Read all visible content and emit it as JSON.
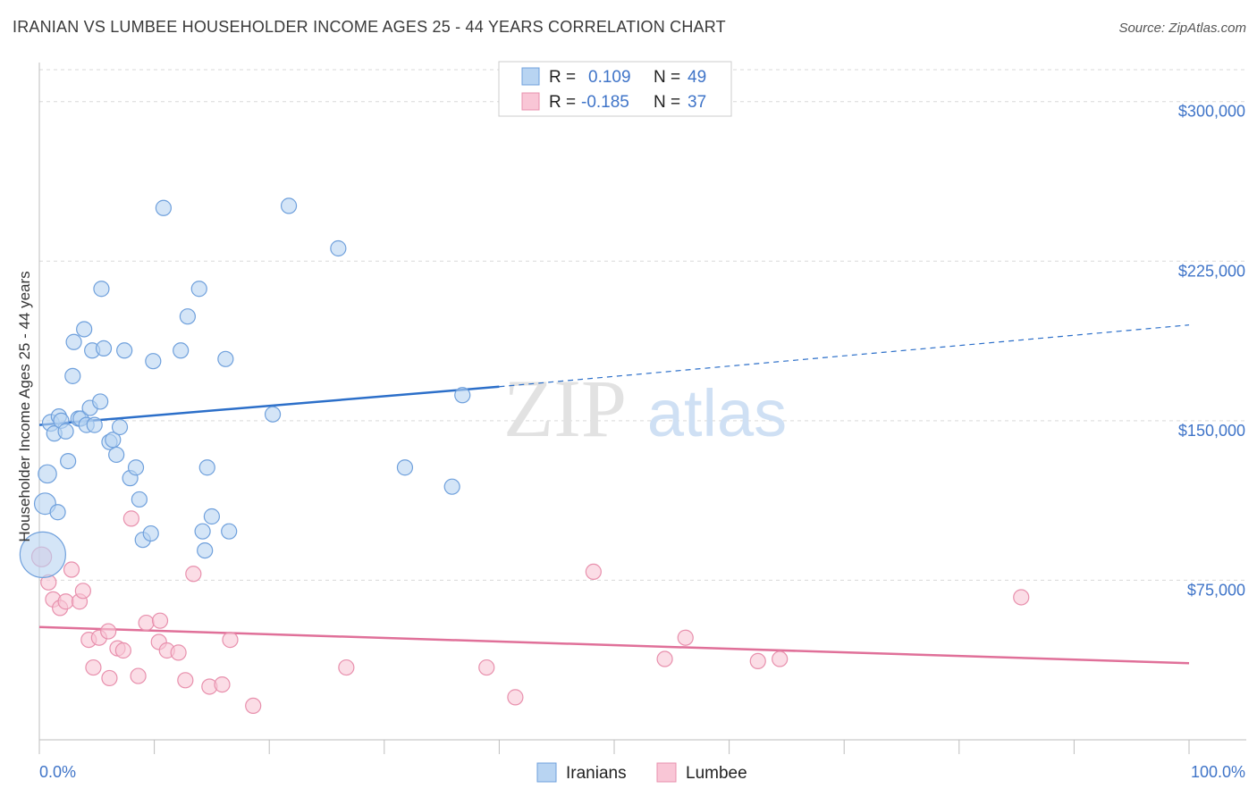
{
  "title": "IRANIAN VS LUMBEE HOUSEHOLDER INCOME AGES 25 - 44 YEARS CORRELATION CHART",
  "source": "Source: ZipAtlas.com",
  "watermark": {
    "zip": "ZIP",
    "atlas": "atlas"
  },
  "colors": {
    "iranians_fill": "#b8d4f2",
    "iranians_stroke": "#6fa0dc",
    "iranians_line": "#2c6fc9",
    "lumbee_fill": "#f9c6d6",
    "lumbee_stroke": "#e890ad",
    "lumbee_line": "#e07099",
    "grid": "#d9d9d9",
    "axis_text": "#3f74c8"
  },
  "legend": {
    "rows": [
      {
        "r_label": "R = ",
        "r_value": "0.109",
        "n_label": "N = ",
        "n_value": "49"
      },
      {
        "r_label": "R = ",
        "r_value": "-0.185",
        "n_label": "N = ",
        "n_value": "37"
      }
    ]
  },
  "chart_data": {
    "type": "scatter",
    "title": "IRANIAN VS LUMBEE HOUSEHOLDER INCOME AGES 25 - 44 YEARS CORRELATION CHART",
    "xlabel": "",
    "ylabel": "Householder Income Ages 25 - 44 years",
    "xlim": [
      0,
      100
    ],
    "ylim": [
      0,
      315000
    ],
    "x_tick_labels": [
      "0.0%",
      "100.0%"
    ],
    "y_ticks": [
      75000,
      150000,
      225000,
      300000
    ],
    "y_tick_labels": [
      "$75,000",
      "$150,000",
      "$225,000",
      "$300,000"
    ],
    "grid": true,
    "legend_placement": "top-center",
    "series": [
      {
        "name": "Iranians",
        "points": [
          [
            0.3,
            87000,
            3
          ],
          [
            0.5,
            111000,
            1.4
          ],
          [
            0.7,
            125000,
            1.2
          ],
          [
            1.0,
            149000,
            1.1
          ],
          [
            1.3,
            144000,
            1
          ],
          [
            1.6,
            107000,
            1
          ],
          [
            1.7,
            152000,
            1
          ],
          [
            1.9,
            150000,
            1
          ],
          [
            2.3,
            145000,
            1
          ],
          [
            2.5,
            131000,
            1
          ],
          [
            2.9,
            171000,
            1
          ],
          [
            3.0,
            187000,
            1
          ],
          [
            3.4,
            151000,
            1
          ],
          [
            3.6,
            151000,
            1
          ],
          [
            3.9,
            193000,
            1
          ],
          [
            4.1,
            148000,
            1
          ],
          [
            4.4,
            156000,
            1
          ],
          [
            4.6,
            183000,
            1
          ],
          [
            4.8,
            148000,
            1
          ],
          [
            5.3,
            159000,
            1
          ],
          [
            5.4,
            212000,
            1
          ],
          [
            5.6,
            184000,
            1
          ],
          [
            6.1,
            140000,
            1
          ],
          [
            6.4,
            141000,
            1
          ],
          [
            6.7,
            134000,
            1
          ],
          [
            7.0,
            147000,
            1
          ],
          [
            7.4,
            183000,
            1
          ],
          [
            7.9,
            123000,
            1
          ],
          [
            8.4,
            128000,
            1
          ],
          [
            8.7,
            113000,
            1
          ],
          [
            9.0,
            94000,
            1
          ],
          [
            9.7,
            97000,
            1
          ],
          [
            9.9,
            178000,
            1
          ],
          [
            10.8,
            250000,
            1
          ],
          [
            12.3,
            183000,
            1
          ],
          [
            12.9,
            199000,
            1
          ],
          [
            13.9,
            212000,
            1
          ],
          [
            14.2,
            98000,
            1
          ],
          [
            14.4,
            89000,
            1
          ],
          [
            14.6,
            128000,
            1
          ],
          [
            15.0,
            105000,
            1
          ],
          [
            16.2,
            179000,
            1
          ],
          [
            16.5,
            98000,
            1
          ],
          [
            20.3,
            153000,
            1
          ],
          [
            21.7,
            251000,
            1
          ],
          [
            26.0,
            231000,
            1
          ],
          [
            31.8,
            128000,
            1
          ],
          [
            35.9,
            119000,
            1
          ],
          [
            36.8,
            162000,
            1
          ]
        ],
        "trend": {
          "x0": 0,
          "y0": 148000,
          "x1": 40,
          "y1": 166000,
          "dashed_to_x": 100,
          "dashed_to_y": 195000
        }
      },
      {
        "name": "Lumbee",
        "points": [
          [
            0.2,
            86000,
            1.3
          ],
          [
            0.8,
            74000,
            1
          ],
          [
            1.2,
            66000,
            1
          ],
          [
            1.8,
            62000,
            1
          ],
          [
            2.3,
            65000,
            1
          ],
          [
            2.8,
            80000,
            1
          ],
          [
            3.5,
            65000,
            1
          ],
          [
            3.8,
            70000,
            1
          ],
          [
            4.3,
            47000,
            1
          ],
          [
            4.7,
            34000,
            1
          ],
          [
            5.2,
            48000,
            1
          ],
          [
            6.0,
            51000,
            1
          ],
          [
            6.1,
            29000,
            1
          ],
          [
            6.8,
            43000,
            1
          ],
          [
            7.3,
            42000,
            1
          ],
          [
            8.0,
            104000,
            1
          ],
          [
            8.6,
            30000,
            1
          ],
          [
            9.3,
            55000,
            1
          ],
          [
            10.5,
            56000,
            1
          ],
          [
            10.4,
            46000,
            1
          ],
          [
            11.1,
            42000,
            1
          ],
          [
            12.1,
            41000,
            1
          ],
          [
            12.7,
            28000,
            1
          ],
          [
            13.4,
            78000,
            1
          ],
          [
            14.8,
            25000,
            1
          ],
          [
            15.9,
            26000,
            1
          ],
          [
            16.6,
            47000,
            1
          ],
          [
            18.6,
            16000,
            1
          ],
          [
            26.7,
            34000,
            1
          ],
          [
            38.9,
            34000,
            1
          ],
          [
            41.4,
            20000,
            1
          ],
          [
            48.2,
            79000,
            1
          ],
          [
            54.4,
            38000,
            1
          ],
          [
            56.2,
            48000,
            1
          ],
          [
            62.5,
            37000,
            1
          ],
          [
            64.4,
            38000,
            1
          ],
          [
            85.4,
            67000,
            1
          ]
        ],
        "trend": {
          "x0": 0,
          "y0": 53000,
          "x1": 100,
          "y1": 36000
        }
      }
    ]
  }
}
